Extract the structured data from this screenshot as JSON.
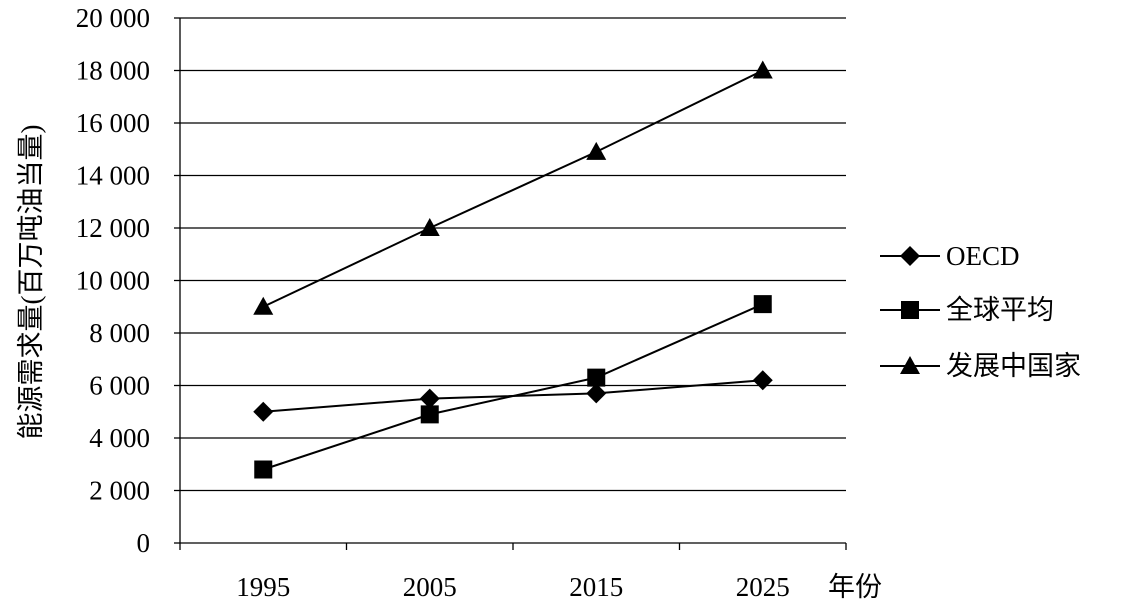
{
  "chart_data": {
    "type": "line",
    "title": "",
    "xlabel": "年份",
    "ylabel": "能源需求量(百万吨油当量)",
    "categories": [
      "1995",
      "2005",
      "2015",
      "2025"
    ],
    "ylim": [
      0,
      20000
    ],
    "yticks": [
      0,
      2000,
      4000,
      6000,
      8000,
      10000,
      12000,
      14000,
      16000,
      18000,
      20000
    ],
    "ytick_labels": [
      "0",
      "2 000",
      "4 000",
      "6 000",
      "8 000",
      "10 000",
      "12 000",
      "14 000",
      "16 000",
      "18 000",
      "20 000"
    ],
    "grid": true,
    "legend_position": "right",
    "series": [
      {
        "name": "OECD",
        "marker": "diamond",
        "values": [
          5000,
          5500,
          5700,
          6200
        ]
      },
      {
        "name": "全球平均",
        "marker": "square",
        "values": [
          2800,
          4900,
          6300,
          9100
        ]
      },
      {
        "name": "发展中国家",
        "marker": "triangle",
        "values": [
          9000,
          12000,
          14900,
          18000
        ]
      }
    ]
  }
}
